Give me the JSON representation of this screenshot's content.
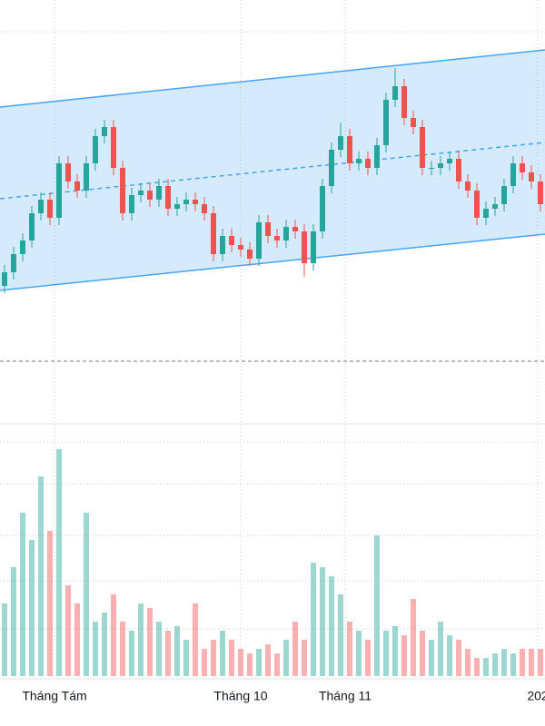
{
  "chart_data": {
    "type": "candlestick",
    "xlim": [
      -0.5,
      59.5
    ],
    "xticks": [
      {
        "value": 5.5,
        "label": "Tháng Tám"
      },
      {
        "value": 26,
        "label": "Tháng 10"
      },
      {
        "value": 37.5,
        "label": "Tháng 11"
      },
      {
        "value": 58.7,
        "label": "202"
      }
    ],
    "ylim": [
      0,
      465
    ],
    "vlim": [
      0,
      275
    ],
    "up_color": "#26a69a",
    "down_color": "#ef5350",
    "open": [
      150,
      165,
      185,
      200,
      230,
      245,
      225,
      285,
      265,
      255,
      285,
      315,
      325,
      280,
      230,
      250,
      255,
      245,
      260,
      235,
      240,
      245,
      240,
      230,
      185,
      205,
      195,
      190,
      180,
      220,
      205,
      200,
      215,
      210,
      175,
      210,
      260,
      300,
      315,
      285,
      290,
      280,
      305,
      355,
      370,
      335,
      325,
      280,
      280,
      285,
      290,
      265,
      255,
      225,
      235,
      240,
      260,
      285,
      275,
      265
    ],
    "high": [
      173,
      193,
      208,
      238,
      253,
      253,
      293,
      293,
      273,
      293,
      323,
      333,
      333,
      288,
      258,
      263,
      263,
      268,
      268,
      248,
      253,
      253,
      248,
      238,
      213,
      213,
      203,
      198,
      228,
      228,
      213,
      223,
      223,
      218,
      218,
      268,
      308,
      330,
      323,
      298,
      298,
      313,
      363,
      390,
      378,
      343,
      333,
      288,
      293,
      298,
      298,
      273,
      263,
      243,
      248,
      268,
      293,
      293,
      283,
      273
    ],
    "low": [
      142,
      157,
      177,
      192,
      222,
      217,
      217,
      257,
      247,
      247,
      277,
      307,
      272,
      222,
      222,
      242,
      237,
      237,
      227,
      227,
      232,
      232,
      222,
      177,
      177,
      187,
      182,
      172,
      172,
      197,
      192,
      192,
      202,
      160,
      167,
      202,
      252,
      292,
      277,
      277,
      272,
      272,
      297,
      347,
      327,
      317,
      272,
      272,
      272,
      277,
      257,
      247,
      217,
      217,
      227,
      232,
      252,
      267,
      257,
      232
    ],
    "close": [
      165,
      185,
      200,
      230,
      245,
      225,
      285,
      265,
      255,
      285,
      315,
      325,
      280,
      230,
      250,
      255,
      245,
      260,
      235,
      240,
      245,
      240,
      230,
      185,
      205,
      195,
      190,
      180,
      220,
      205,
      200,
      215,
      210,
      175,
      210,
      260,
      300,
      315,
      285,
      290,
      280,
      305,
      355,
      370,
      335,
      325,
      280,
      280,
      285,
      290,
      265,
      255,
      225,
      235,
      240,
      260,
      285,
      275,
      265,
      240
    ],
    "volume": [
      80,
      120,
      180,
      150,
      220,
      160,
      250,
      100,
      80,
      180,
      60,
      70,
      90,
      60,
      50,
      80,
      75,
      60,
      50,
      55,
      40,
      80,
      30,
      40,
      50,
      40,
      30,
      25,
      30,
      35,
      25,
      40,
      60,
      40,
      125,
      120,
      110,
      90,
      60,
      50,
      40,
      155,
      50,
      55,
      45,
      85,
      50,
      40,
      60,
      45,
      40,
      30,
      20,
      20,
      25,
      30,
      25,
      30,
      30,
      30
    ],
    "channel": {
      "x": [
        -0.5,
        59.5
      ],
      "upper": [
        347,
        410
      ],
      "middle": [
        246,
        308
      ],
      "lower": [
        145,
        207
      ],
      "color": "#42a5f5"
    },
    "level": 67
  }
}
